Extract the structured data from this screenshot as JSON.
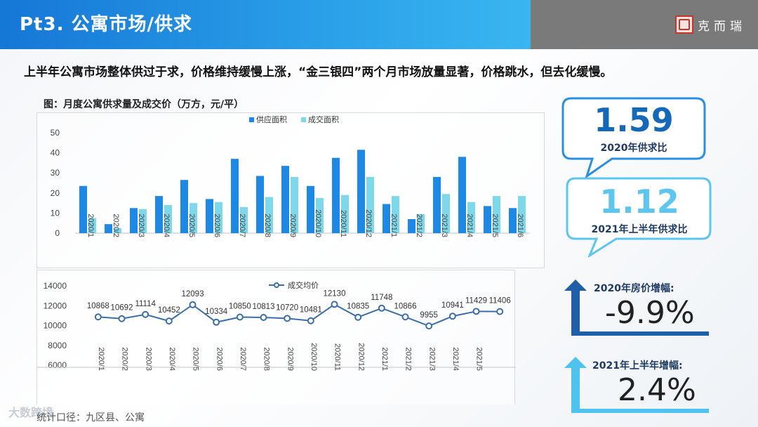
{
  "header": {
    "title": "Pt3. 公寓市场/供求",
    "brand": "克而瑞"
  },
  "subtitle": "上半年公寓市场整体供过于求，价格维持缓慢上涨，“金三银四”两个月市场放量显著，价格跳水，但去化缓慢。",
  "chart_title": "图：月度公寓供求量及成交价（万方，元/平）",
  "colors": {
    "supply": "#1e88e5",
    "deal_area": "#7fd8ea",
    "price_line": "#3c6ea8",
    "accent_blue": "#1567b8",
    "arrow_dark": "#1f5fa8",
    "arrow_light": "#4ec3f0"
  },
  "chart_data": [
    {
      "type": "bar",
      "categories": [
        "2020/1",
        "2020/2",
        "2020/3",
        "2020/4",
        "2020/5",
        "2020/6",
        "2020/7",
        "2020/8",
        "2020/9",
        "2020/10",
        "2020/11",
        "2020/12",
        "2021/1",
        "2021/2",
        "2021/3",
        "2021/4",
        "2021/5",
        "2021/6"
      ],
      "series": [
        {
          "name": "供应面积",
          "values": [
            23.5,
            4.5,
            12.5,
            18.5,
            26.5,
            17,
            37,
            28.5,
            33.5,
            23.5,
            37.5,
            41.5,
            14.5,
            7,
            28,
            38,
            13.5,
            12.5
          ]
        },
        {
          "name": "成交面积",
          "values": [
            7.5,
            2.5,
            12,
            14,
            15,
            15.5,
            13,
            18,
            28,
            17.5,
            19,
            28,
            18.5,
            9.5,
            19.5,
            15.5,
            18.5,
            18.5
          ]
        }
      ],
      "ylim": [
        0,
        50
      ],
      "yticks": [
        0,
        10,
        20,
        30,
        40,
        50
      ],
      "legend": "top-center",
      "grid": false
    },
    {
      "type": "line",
      "categories": [
        "2020/1",
        "2020/2",
        "2020/3",
        "2020/4",
        "2020/5",
        "2020/6",
        "2020/7",
        "2020/8",
        "2020/9",
        "2020/10",
        "2020/11",
        "2020/12",
        "2021/1",
        "2021/2",
        "2021/3",
        "2021/4",
        "2021/5",
        "2021/6"
      ],
      "series": [
        {
          "name": "成交均价",
          "values": [
            10868,
            10692,
            11114,
            10452,
            12093,
            10334,
            10850,
            10813,
            10720,
            10481,
            12130,
            10835,
            11748,
            10866,
            9955,
            10941,
            11429,
            11406
          ]
        }
      ],
      "visible_x_labels": [
        "2020/1",
        "2020/2",
        "2020/3",
        "2020/4",
        "2020/5",
        "2020/6",
        "2020/7",
        "2020/8",
        "2020/9",
        "2020/10",
        "2020/11",
        "2020/12",
        "2021/1",
        "2021/2",
        "2021/3",
        "2021/4",
        "2021/5"
      ],
      "ylim": [
        6000,
        14000
      ],
      "yticks": [
        6000,
        8000,
        10000,
        12000,
        14000
      ],
      "legend": "top-center",
      "grid": false
    }
  ],
  "kpis": {
    "ratio_2020": {
      "value": "1.59",
      "label": "2020年供求比"
    },
    "ratio_2021h1": {
      "value": "1.12",
      "label": "2021年上半年供求比"
    },
    "price_2020": {
      "label": "2020年房价增幅:",
      "value": "-9.9%"
    },
    "price_2021h1": {
      "label": "2021年上半年增幅:",
      "value": "2.4%"
    }
  },
  "footer": {
    "logo": "大数跨境",
    "source": "统计口径：九区县、公寓"
  }
}
